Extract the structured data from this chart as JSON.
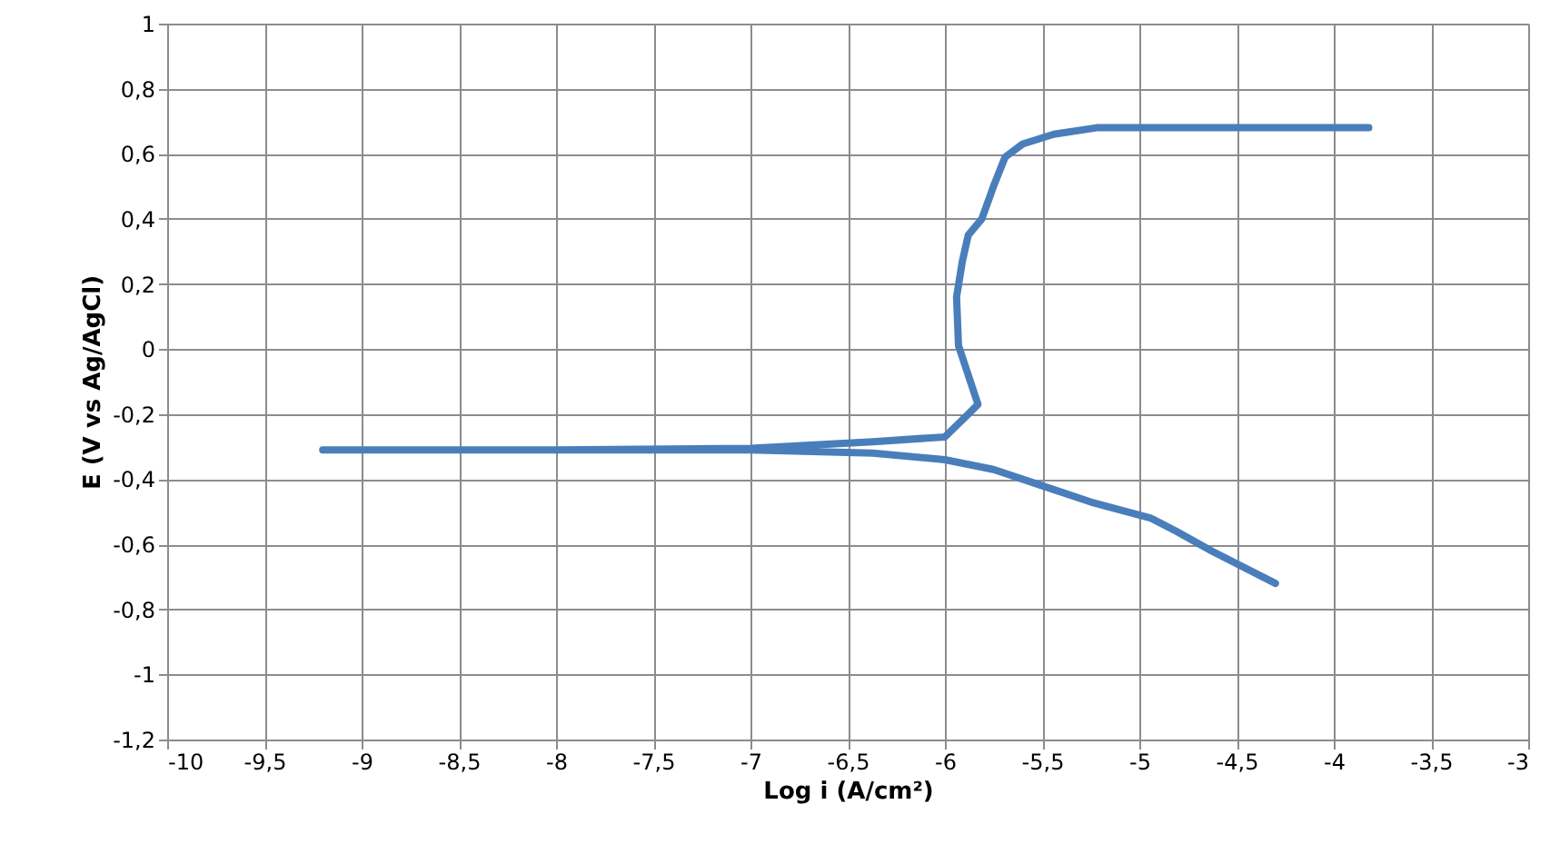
{
  "chart_data": {
    "type": "line",
    "xlabel": "Log i (A/cm²)",
    "ylabel": "E (V vs Ag/AgCl)",
    "xlim": [
      -10,
      -3
    ],
    "ylim": [
      -1.2,
      1
    ],
    "xticks": [
      -10,
      {
        "value": -9.5,
        "label": "-9,5"
      },
      -9,
      {
        "value": -8.5,
        "label": "-8,5"
      },
      -8,
      {
        "value": -7.5,
        "label": "-7,5"
      },
      -7,
      {
        "value": -6.5,
        "label": "-6,5"
      },
      -6,
      {
        "value": -5.5,
        "label": "-5,5"
      },
      -5,
      {
        "value": -4.5,
        "label": "-4,5"
      },
      -4,
      {
        "value": -3.5,
        "label": "-3,5"
      },
      -3
    ],
    "yticks": [
      {
        "value": -1.2,
        "label": "-1,2"
      },
      -1,
      {
        "value": -0.8,
        "label": "-0,8"
      },
      {
        "value": -0.6,
        "label": "-0,6"
      },
      {
        "value": -0.4,
        "label": "-0,4"
      },
      {
        "value": -0.2,
        "label": "-0,2"
      },
      0,
      {
        "value": 0.2,
        "label": "0,2"
      },
      {
        "value": 0.4,
        "label": "0,4"
      },
      {
        "value": 0.6,
        "label": "0,6"
      },
      {
        "value": 0.8,
        "label": "0,8"
      },
      1
    ],
    "grid": true,
    "marker": "none",
    "line_style": "solid",
    "series": [
      {
        "color": "#4a7ebb",
        "x": [
          -4.3,
          -4.63,
          -4.81,
          -4.94,
          -5.25,
          -5.5,
          -5.75,
          -6.0,
          -6.37,
          -7.0,
          -8.0,
          -9.2,
          -8.0,
          -7.0,
          -6.37,
          -6.0,
          -5.88,
          -5.83,
          -5.88,
          -5.93,
          -5.94,
          -5.91,
          -5.88,
          -5.81,
          -5.75,
          -5.69,
          -5.6,
          -5.44,
          -5.22,
          -4.5,
          -3.82
        ],
        "values": [
          -0.72,
          -0.62,
          -0.56,
          -0.52,
          -0.47,
          -0.42,
          -0.37,
          -0.34,
          -0.32,
          -0.31,
          -0.31,
          -0.31,
          -0.31,
          -0.305,
          -0.285,
          -0.27,
          -0.2,
          -0.17,
          -0.08,
          0.01,
          0.16,
          0.27,
          0.35,
          0.4,
          0.5,
          0.59,
          0.63,
          0.66,
          0.68,
          0.68,
          0.68
        ]
      }
    ]
  }
}
